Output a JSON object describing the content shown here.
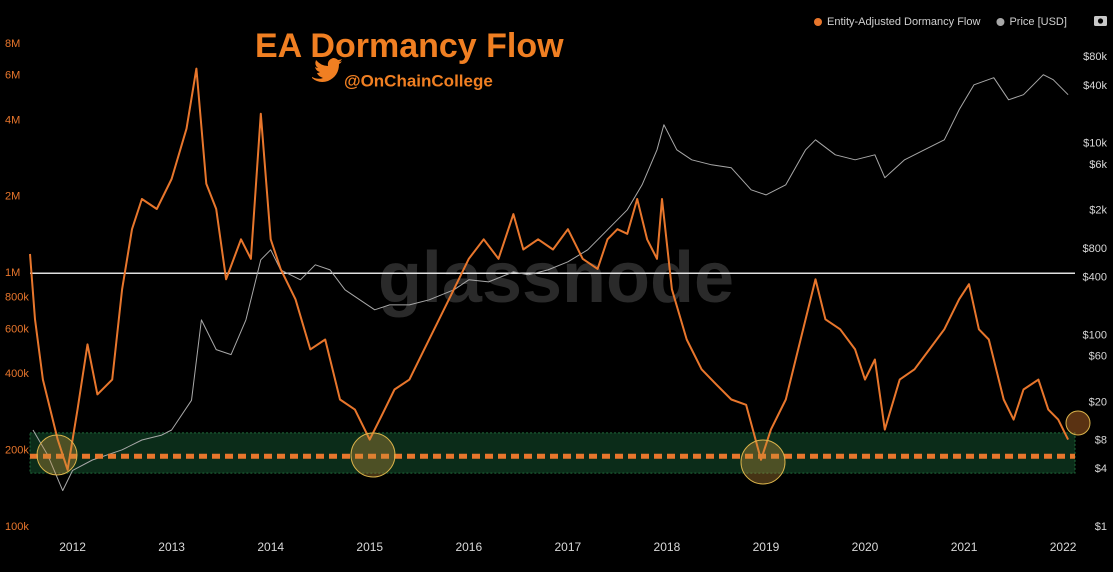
{
  "chart_data": {
    "type": "line",
    "title": "EA Dormancy Flow",
    "subtitle": "@OnChainCollege",
    "watermark": "glassnode",
    "log_scale": true,
    "legend": "top-right",
    "xlim": [
      2011.57,
      2022.12
    ],
    "xticks": [
      2012,
      2013,
      2014,
      2015,
      2016,
      2017,
      2018,
      2019,
      2020,
      2021,
      2022
    ],
    "ylim": [
      100000,
      8000000
    ],
    "yticks": [
      {
        "value": 100000,
        "label": "100k"
      },
      {
        "value": 200000,
        "label": "200k"
      },
      {
        "value": 400000,
        "label": "400k"
      },
      {
        "value": 600000,
        "label": "600k"
      },
      {
        "value": 800000,
        "label": "800k"
      },
      {
        "value": 1000000,
        "label": "1M"
      },
      {
        "value": 2000000,
        "label": "2M"
      },
      {
        "value": 4000000,
        "label": "4M"
      },
      {
        "value": 6000000,
        "label": "6M"
      },
      {
        "value": 8000000,
        "label": "8M"
      }
    ],
    "y2lim": [
      1,
      110000
    ],
    "y2ticks": [
      {
        "value": 1,
        "label": "$1"
      },
      {
        "value": 4,
        "label": "$4"
      },
      {
        "value": 8,
        "label": "$8"
      },
      {
        "value": 20,
        "label": "$20"
      },
      {
        "value": 60,
        "label": "$60"
      },
      {
        "value": 100,
        "label": "$100"
      },
      {
        "value": 400,
        "label": "$400"
      },
      {
        "value": 800,
        "label": "$800"
      },
      {
        "value": 2000,
        "label": "$2k"
      },
      {
        "value": 6000,
        "label": "$6k"
      },
      {
        "value": 10000,
        "label": "$10k"
      },
      {
        "value": 40000,
        "label": "$40k"
      },
      {
        "value": 80000,
        "label": "$80k"
      }
    ],
    "reference_line": 1000000,
    "threshold": 190000,
    "band": [
      163000,
      235000
    ],
    "series": [
      {
        "name": "Entity-Adjusted Dormancy Flow",
        "color": "#e8762c",
        "axis": "y",
        "x": [
          2011.57,
          2011.62,
          2011.7,
          2011.85,
          2011.95,
          2012.05,
          2012.15,
          2012.25,
          2012.4,
          2012.5,
          2012.6,
          2012.7,
          2012.85,
          2013.0,
          2013.15,
          2013.25,
          2013.35,
          2013.45,
          2013.55,
          2013.7,
          2013.8,
          2013.9,
          2014.0,
          2014.1,
          2014.25,
          2014.4,
          2014.55,
          2014.7,
          2014.85,
          2015.0,
          2015.1,
          2015.25,
          2015.4,
          2015.55,
          2015.7,
          2015.85,
          2016.0,
          2016.15,
          2016.3,
          2016.45,
          2016.55,
          2016.7,
          2016.85,
          2017.0,
          2017.15,
          2017.3,
          2017.4,
          2017.5,
          2017.6,
          2017.7,
          2017.8,
          2017.9,
          2017.95,
          2018.05,
          2018.2,
          2018.35,
          2018.5,
          2018.65,
          2018.8,
          2018.95,
          2019.05,
          2019.2,
          2019.35,
          2019.5,
          2019.6,
          2019.75,
          2019.9,
          2020.0,
          2020.1,
          2020.2,
          2020.35,
          2020.5,
          2020.65,
          2020.8,
          2020.95,
          2021.05,
          2021.15,
          2021.25,
          2021.4,
          2021.5,
          2021.6,
          2021.75,
          2021.85,
          2021.95,
          2022.05
        ],
        "values": [
          1190000,
          658000,
          381000,
          221000,
          168000,
          290000,
          524000,
          333000,
          381000,
          864000,
          1490000,
          1960000,
          1790000,
          2350000,
          3710000,
          6400000,
          2250000,
          1790000,
          946000,
          1360000,
          1140000,
          4250000,
          1360000,
          1040000,
          789000,
          501000,
          548000,
          318000,
          290000,
          221000,
          265000,
          348000,
          381000,
          501000,
          658000,
          864000,
          1140000,
          1360000,
          1140000,
          1710000,
          1240000,
          1360000,
          1240000,
          1490000,
          1140000,
          1040000,
          1360000,
          1490000,
          1430000,
          1960000,
          1360000,
          1140000,
          1960000,
          864000,
          548000,
          418000,
          364000,
          318000,
          303000,
          184000,
          242000,
          318000,
          548000,
          946000,
          658000,
          601000,
          501000,
          381000,
          457000,
          242000,
          381000,
          418000,
          501000,
          601000,
          789000,
          905000,
          601000,
          548000,
          318000,
          265000,
          348000,
          381000,
          290000,
          265000,
          221000
        ]
      },
      {
        "name": "Price [USD]",
        "color": "#a8a8a8",
        "axis": "y2",
        "x": [
          2011.6,
          2011.75,
          2011.9,
          2012.0,
          2012.2,
          2012.5,
          2012.7,
          2012.9,
          2013.0,
          2013.2,
          2013.3,
          2013.45,
          2013.6,
          2013.75,
          2013.9,
          2014.0,
          2014.1,
          2014.3,
          2014.45,
          2014.6,
          2014.75,
          2014.9,
          2015.05,
          2015.2,
          2015.4,
          2015.6,
          2015.85,
          2016.0,
          2016.2,
          2016.45,
          2016.6,
          2016.8,
          2017.0,
          2017.2,
          2017.4,
          2017.6,
          2017.75,
          2017.9,
          2017.97,
          2018.1,
          2018.25,
          2018.45,
          2018.65,
          2018.85,
          2019.0,
          2019.2,
          2019.4,
          2019.5,
          2019.7,
          2019.9,
          2020.1,
          2020.2,
          2020.4,
          2020.6,
          2020.8,
          2020.95,
          2021.1,
          2021.3,
          2021.45,
          2021.6,
          2021.8,
          2021.9,
          2022.05
        ],
        "values": [
          10.3,
          5.6,
          2.4,
          3.9,
          5.0,
          6.4,
          8.1,
          9.1,
          10.3,
          21,
          145,
          71,
          63,
          145,
          615,
          782,
          483,
          380,
          545,
          483,
          299,
          235,
          185,
          208,
          208,
          235,
          299,
          380,
          362,
          460,
          429,
          483,
          586,
          782,
          1265,
          2046,
          3730,
          8650,
          15800,
          8650,
          6800,
          6040,
          5610,
          3310,
          2930,
          3730,
          8650,
          11000,
          7670,
          6800,
          7670,
          4420,
          6800,
          8650,
          11000,
          22600,
          41300,
          48900,
          28800,
          32500,
          52600,
          46600,
          32500
        ]
      }
    ]
  }
}
